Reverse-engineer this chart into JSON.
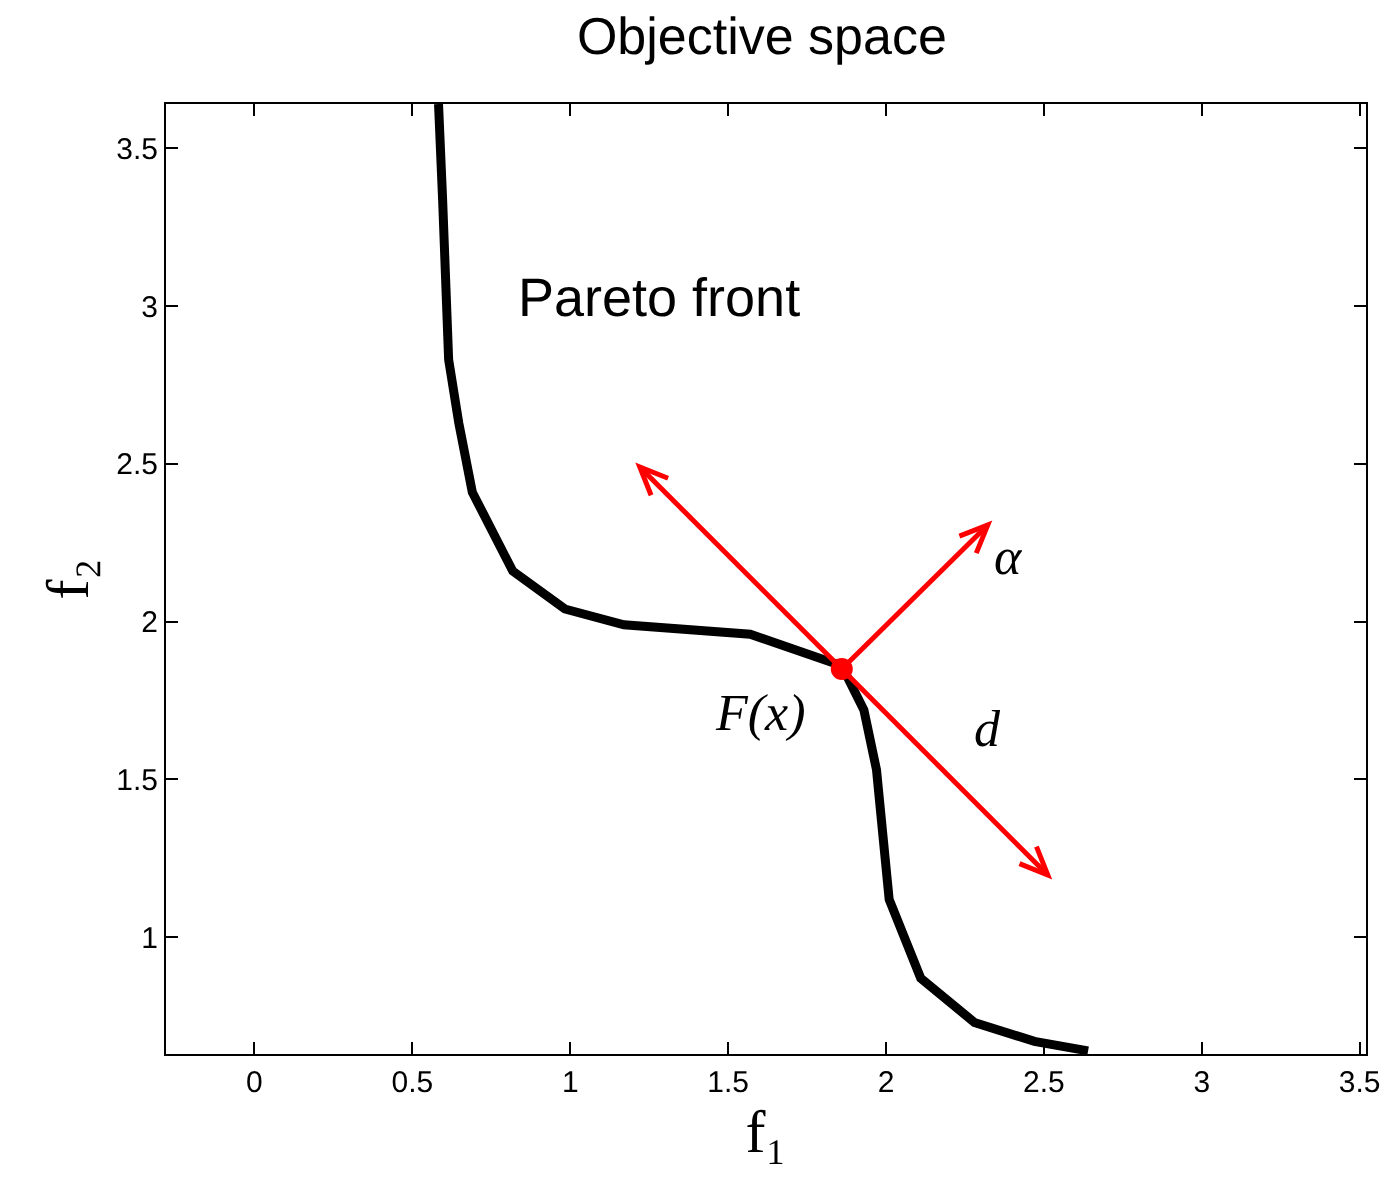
{
  "chart_data": {
    "type": "line",
    "title": "Objective space",
    "xlabel": "f₁",
    "ylabel": "f₂",
    "xlim": [
      -0.28,
      3.52
    ],
    "ylim": [
      0.63,
      3.64
    ],
    "xticks": [
      0,
      0.5,
      1,
      1.5,
      2,
      2.5,
      3,
      3.5
    ],
    "yticks": [
      1,
      1.5,
      2,
      2.5,
      3,
      3.5
    ],
    "grid": false,
    "marker": "none",
    "line_style": "solid",
    "series": [
      {
        "color": "#000000",
        "x": [
          0.583,
          0.596,
          0.615,
          0.647,
          0.69,
          0.818,
          0.983,
          1.17,
          1.57,
          1.86,
          1.93,
          1.97,
          2.01,
          2.11,
          2.28,
          2.47,
          2.64
        ],
        "values": [
          3.64,
          3.335,
          2.83,
          2.63,
          2.41,
          2.16,
          2.04,
          1.99,
          1.96,
          1.86,
          1.72,
          1.53,
          1.12,
          0.87,
          0.73,
          0.67,
          0.64
        ]
      },
      {
        "type": "scatter",
        "marker": "circle",
        "color": "#ff0000",
        "x": [
          1.86
        ],
        "values": [
          1.85
        ]
      }
    ],
    "annotations": [
      "Pareto front",
      {
        "text": "α",
        "x": 1.86,
        "y": 1.85
      },
      "d",
      "F(x)"
    ]
  }
}
